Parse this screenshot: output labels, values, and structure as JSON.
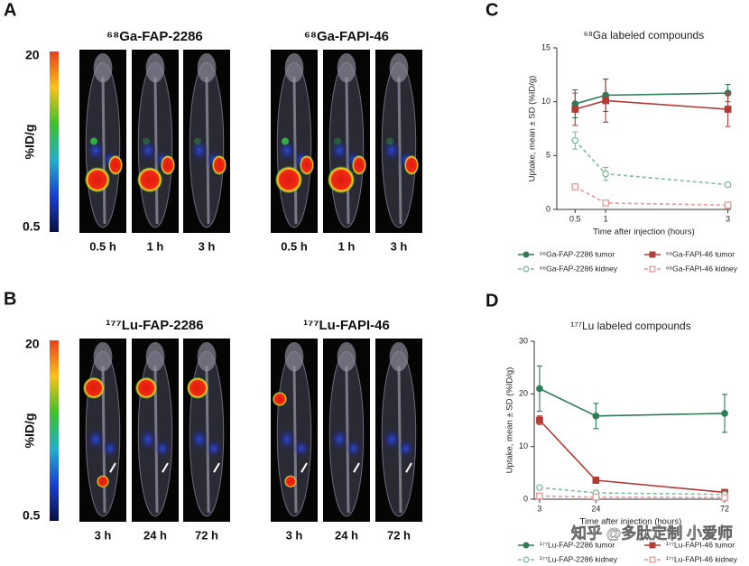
{
  "panels": [
    {
      "letter": "A",
      "colorbar": {
        "max": 20,
        "min": 0.5,
        "unit": "%ID/g"
      },
      "groups": [
        {
          "title": "⁶⁸Ga-FAP-2286",
          "times": [
            "0.5 h",
            "1 h",
            "3 h"
          ]
        },
        {
          "title": "⁶⁸Ga-FAPI-46",
          "times": [
            "0.5 h",
            "1 h",
            "3 h"
          ]
        }
      ]
    },
    {
      "letter": "B",
      "colorbar": {
        "max": 20,
        "min": 0.5,
        "unit": "%ID/g"
      },
      "groups": [
        {
          "title": "¹⁷⁷Lu-FAP-2286",
          "times": [
            "3 h",
            "24 h",
            "72 h"
          ]
        },
        {
          "title": "¹⁷⁷Lu-FAPI-46",
          "times": [
            "3 h",
            "24 h",
            "72 h"
          ]
        }
      ]
    }
  ],
  "chart_data": [
    {
      "type": "line",
      "letter": "C",
      "title": "⁶⁸Ga labeled compounds",
      "x_label": "Time after injection (hours)",
      "y_label": "Uptake, mean ± SD (%ID/g)",
      "x": [
        0.5,
        1,
        3
      ],
      "xlim": [
        0.2,
        3.05
      ],
      "xticks": [
        0.5,
        1,
        3
      ],
      "ylim": [
        0,
        15
      ],
      "yticks": [
        0,
        5,
        10,
        15
      ],
      "series": [
        {
          "name": "⁶⁸Ga-FAP-2286 tumor",
          "color": "#2e7d57",
          "marker": "circle",
          "filled": true,
          "dashed": false,
          "values": [
            9.8,
            10.6,
            10.8
          ],
          "errors": [
            1.3,
            1.5,
            0.8
          ]
        },
        {
          "name": "⁶⁸Ga-FAPI-46 tumor",
          "color": "#b23b36",
          "marker": "square",
          "filled": true,
          "dashed": false,
          "values": [
            9.3,
            10.1,
            9.3
          ],
          "errors": [
            1.5,
            2.0,
            1.6
          ]
        },
        {
          "name": "⁶⁸Ga-FAP-2286 kidney",
          "color": "#7fbf98",
          "marker": "circle",
          "filled": false,
          "dashed": true,
          "values": [
            6.4,
            3.3,
            2.3
          ],
          "errors": [
            0.8,
            0.6,
            0.2
          ]
        },
        {
          "name": "⁶⁸Ga-FAPI-46 kidney",
          "color": "#e79a9a",
          "marker": "square",
          "filled": false,
          "dashed": true,
          "values": [
            2.1,
            0.6,
            0.4
          ],
          "errors": [
            0.2,
            0.1,
            0.1
          ]
        }
      ]
    },
    {
      "type": "line",
      "letter": "D",
      "title": "¹⁷⁷Lu labeled compounds",
      "x_label": "Time after injection (hours)",
      "y_label": "Uptake, mean ± SD (%ID/g)",
      "x": [
        3,
        24,
        72
      ],
      "xlim": [
        1,
        73
      ],
      "xticks": [
        3,
        24,
        72
      ],
      "ylim": [
        0,
        30
      ],
      "yticks": [
        0,
        10,
        20,
        30
      ],
      "series": [
        {
          "name": "¹⁷⁷Lu-FAP-2286 tumor",
          "color": "#2e7d57",
          "marker": "circle",
          "filled": true,
          "dashed": false,
          "values": [
            21,
            15.8,
            16.3
          ],
          "errors": [
            4.3,
            2.4,
            3.6
          ]
        },
        {
          "name": "¹⁷⁷Lu-FAPI-46 tumor",
          "color": "#b23b36",
          "marker": "square",
          "filled": true,
          "dashed": false,
          "values": [
            15,
            3.6,
            1.3
          ],
          "errors": [
            0.8,
            0.6,
            0.4
          ]
        },
        {
          "name": "¹⁷⁷Lu-FAP-2286 kidney",
          "color": "#7fbf98",
          "marker": "circle",
          "filled": false,
          "dashed": true,
          "values": [
            2.2,
            1.2,
            0.9
          ],
          "errors": [
            0.2,
            0.2,
            0.1
          ]
        },
        {
          "name": "¹⁷⁷Lu-FAPI-46 kidney",
          "color": "#e79a9a",
          "marker": "square",
          "filled": false,
          "dashed": true,
          "values": [
            0.6,
            0.4,
            0.3
          ],
          "errors": [
            0.1,
            0.1,
            0.1
          ]
        }
      ]
    }
  ],
  "watermark": "知乎 @多肽定制 小爱师"
}
